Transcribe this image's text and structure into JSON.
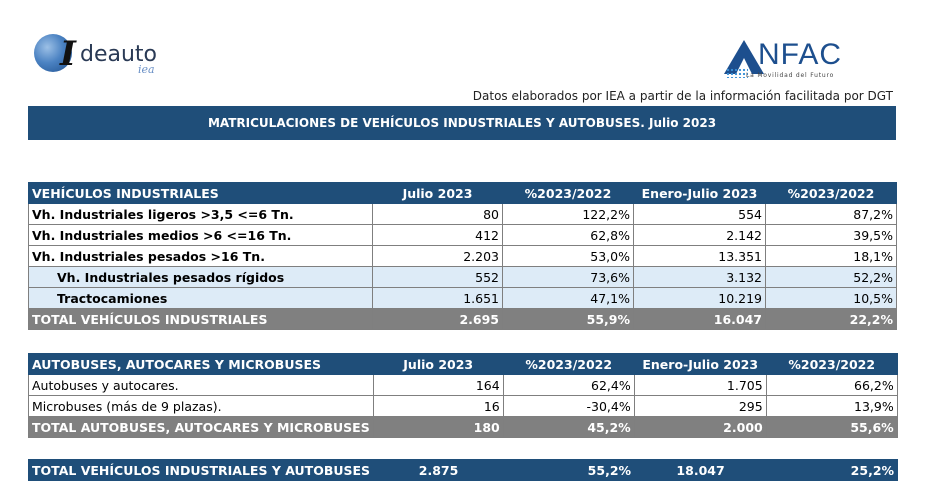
{
  "logos": {
    "left": {
      "brand": "deauto",
      "sub": "iea",
      "initial": "I"
    },
    "right": {
      "brand": "NFAC",
      "tagline": "La Movilidad del Futuro"
    }
  },
  "source_note": "Datos elaborados por IEA a partir de la información facilitada por DGT",
  "title": "MATRICULACIONES DE VEHÍCULOS INDUSTRIALES Y AUTOBUSES.  Julio 2023",
  "colors": {
    "header_bg": "#1f4e79",
    "total_bg": "#808080",
    "sub_bg": "#ddebf7"
  },
  "industrial": {
    "headers": [
      "VEHÍCULOS INDUSTRIALES",
      "Julio 2023",
      "%2023/2022",
      "Enero-Julio 2023",
      "%2023/2022"
    ],
    "rows": [
      {
        "label": "Vh. Industriales ligeros >3,5 <=6 Tn.",
        "month": "80",
        "pct_month": "122,2%",
        "ytd": "554",
        "pct_ytd": "87,2%"
      },
      {
        "label": "Vh. Industriales medios >6  <=16 Tn.",
        "month": "412",
        "pct_month": "62,8%",
        "ytd": "2.142",
        "pct_ytd": "39,5%"
      },
      {
        "label": "Vh. Industriales  pesados >16 Tn.",
        "month": "2.203",
        "pct_month": "53,0%",
        "ytd": "13.351",
        "pct_ytd": "18,1%"
      },
      {
        "label": "Vh. Industriales pesados rígidos",
        "month": "552",
        "pct_month": "73,6%",
        "ytd": "3.132",
        "pct_ytd": "52,2%"
      },
      {
        "label": "Tractocamiones",
        "month": "1.651",
        "pct_month": "47,1%",
        "ytd": "10.219",
        "pct_ytd": "10,5%"
      }
    ],
    "total": {
      "label": "TOTAL VEHÍCULOS INDUSTRIALES",
      "month": "2.695",
      "pct_month": "55,9%",
      "ytd": "16.047",
      "pct_ytd": "22,2%"
    }
  },
  "buses": {
    "headers": [
      "AUTOBUSES, AUTOCARES Y MICROBUSES",
      "Julio 2023",
      "%2023/2022",
      "Enero-Julio 2023",
      "%2023/2022"
    ],
    "rows": [
      {
        "label": "Autobuses y autocares.",
        "month": "164",
        "pct_month": "62,4%",
        "ytd": "1.705",
        "pct_ytd": "66,2%"
      },
      {
        "label": "Microbuses (más de 9 plazas).",
        "month": "16",
        "pct_month": "-30,4%",
        "ytd": "295",
        "pct_ytd": "13,9%"
      }
    ],
    "total": {
      "label": "TOTAL AUTOBUSES, AUTOCARES Y MICROBUSES",
      "month": "180",
      "pct_month": "45,2%",
      "ytd": "2.000",
      "pct_ytd": "55,6%"
    }
  },
  "grand_total": {
    "label": "TOTAL VEHÍCULOS INDUSTRIALES Y AUTOBUSES",
    "month": "2.875",
    "pct_month": "55,2%",
    "ytd": "18.047",
    "pct_ytd": "25,2%"
  }
}
